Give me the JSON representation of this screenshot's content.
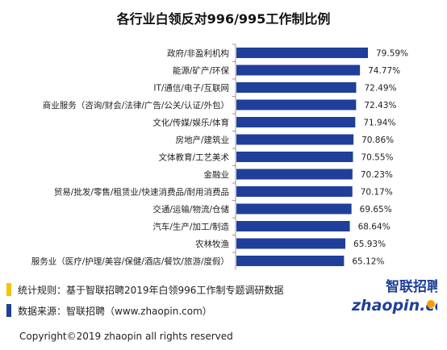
{
  "chart_data": {
    "type": "bar",
    "orientation": "horizontal",
    "title": "各行业白领反对996/995工作制比例",
    "categories": [
      "政府/非盈利机构",
      "能源/矿产/环保",
      "IT/通信/电子/互联网",
      "商业服务（咨询/财会/法律/广告/公关/认证/外包）",
      "文化/传媒/娱乐/体育",
      "房地产/建筑业",
      "文体教育/工艺美术",
      "金融业",
      "贸易/批发/零售/租赁业/快速消费品/耐用消费品",
      "交通/运输/物流/仓储",
      "汽车/生产/加工/制造",
      "农林牧渔",
      "服务业（医疗/护理/美容/保健/酒店/餐饮/旅游/度假）"
    ],
    "values": [
      79.59,
      74.77,
      72.49,
      72.43,
      71.94,
      70.86,
      70.55,
      70.23,
      70.17,
      69.65,
      68.64,
      65.93,
      65.12
    ],
    "value_labels": [
      "79.59%",
      "74.77%",
      "72.49%",
      "72.43%",
      "71.94%",
      "70.86%",
      "70.55%",
      "70.23%",
      "70.17%",
      "69.65%",
      "68.64%",
      "65.93%",
      "65.12%"
    ],
    "bar_color": "#1f3f9a",
    "axis_color": "#999999",
    "grid": false,
    "legend": "none"
  },
  "notes": {
    "rule": "统计规则：基于智联招聘2019年白领996工作制专题调研数据",
    "source": "数据来源：智联招聘（www.zhaopin.com）",
    "rule_marker_color": "#f5c400",
    "source_marker_color": "#1f3f9a"
  },
  "logo": {
    "cn_text": "智联招聘",
    "en_text": "zhaopin.com",
    "cn_color": "#1f3f9a",
    "en_color": "#1f3f9a",
    "accent_color": "#f5a000"
  },
  "copyright": "Copyright©2019 zhaopin all rights reserved"
}
